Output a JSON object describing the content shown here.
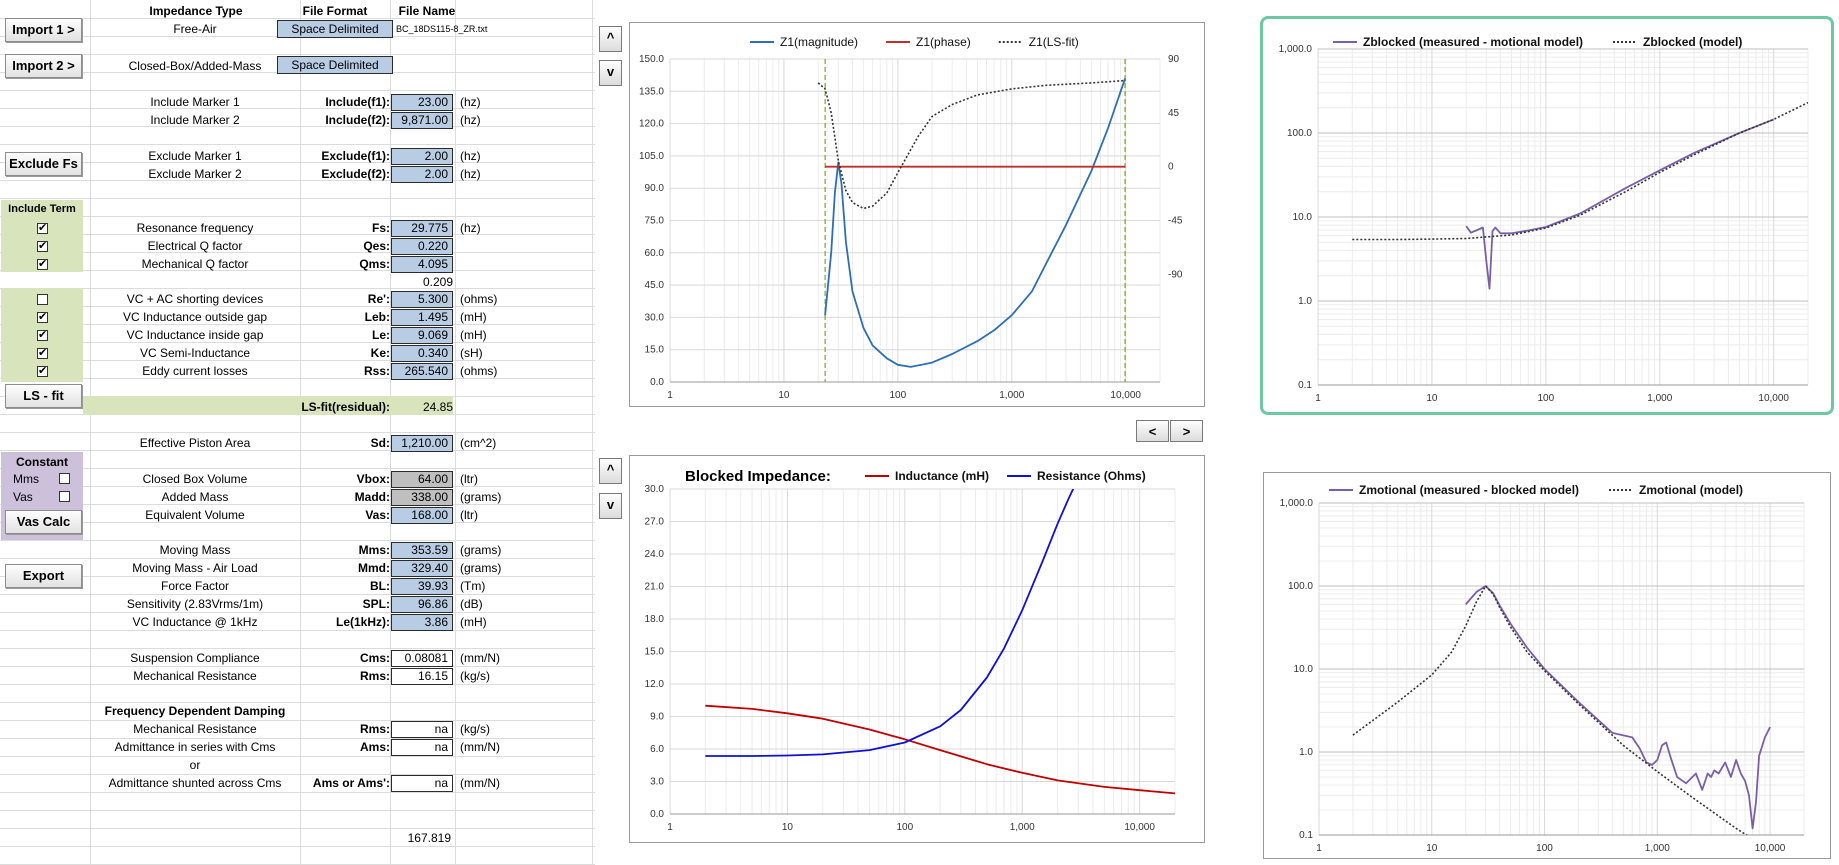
{
  "headers": {
    "impedance_type": "Impedance Type",
    "file_format": "File Format",
    "file_name": "File Name"
  },
  "buttons": {
    "import1": "Import 1 >",
    "import2": "Import 2 >",
    "exclude_fs": "Exclude Fs",
    "ls_fit": "LS - fit",
    "vas_calc": "Vas Calc",
    "export": "Export"
  },
  "import": {
    "row1": {
      "type": "Free-Air",
      "format": "Space Delimited",
      "file": "BC_18DS115-8_ZR.txt"
    },
    "row2": {
      "type": "Closed-Box/Added-Mass",
      "format": "Space Delimited"
    }
  },
  "markers": [
    {
      "label": "Include Marker 1",
      "sym": "Include(f1):",
      "value": "23.00",
      "unit": "(hz)"
    },
    {
      "label": "Include Marker 2",
      "sym": "Include(f2):",
      "value": "9,871.00",
      "unit": "(hz)"
    },
    {
      "label": "Exclude Marker 1",
      "sym": "Exclude(f1):",
      "value": "2.00",
      "unit": "(hz)"
    },
    {
      "label": "Exclude Marker 2",
      "sym": "Exclude(f2):",
      "value": "2.00",
      "unit": "(hz)"
    }
  ],
  "include_term_label": "Include Term",
  "terms": [
    {
      "checked": true,
      "label": "Resonance frequency",
      "sym": "Fs:",
      "value": "29.775",
      "unit": "(hz)"
    },
    {
      "checked": true,
      "label": "Electrical Q factor",
      "sym": "Qes:",
      "value": "0.220",
      "unit": ""
    },
    {
      "checked": true,
      "label": "Mechanical Q factor",
      "sym": "Qms:",
      "value": "4.095",
      "unit": ""
    }
  ],
  "qts_value": "0.209",
  "terms2": [
    {
      "checked": false,
      "label": "VC + AC shorting devices",
      "sym": "Re':",
      "value": "5.300",
      "unit": "(ohms)"
    },
    {
      "checked": true,
      "label": "VC Inductance outside gap",
      "sym": "Leb:",
      "value": "1.495",
      "unit": "(mH)"
    },
    {
      "checked": true,
      "label": "VC Inductance inside gap",
      "sym": "Le:",
      "value": "9.069",
      "unit": "(mH)"
    },
    {
      "checked": true,
      "label": "VC Semi-Inductance",
      "sym": "Ke:",
      "value": "0.340",
      "unit": "(sH)"
    },
    {
      "checked": true,
      "label": "Eddy current losses",
      "sym": "Rss:",
      "value": "265.540",
      "unit": "(ohms)"
    }
  ],
  "residual": {
    "sym": "LS-fit(residual):",
    "value": "24.85"
  },
  "piston": {
    "label": "Effective Piston Area",
    "sym": "Sd:",
    "value": "1,210.00",
    "unit": "(cm^2)"
  },
  "constant": {
    "label": "Constant",
    "mms": "Mms",
    "vas": "Vas"
  },
  "box": [
    {
      "label": "Closed Box Volume",
      "sym": "Vbox:",
      "value": "64.00",
      "unit": "(ltr)",
      "style": "gray"
    },
    {
      "label": "Added Mass",
      "sym": "Madd:",
      "value": "338.00",
      "unit": "(grams)",
      "style": "gray"
    },
    {
      "label": "Equivalent Volume",
      "sym": "Vas:",
      "value": "168.00",
      "unit": "(ltr)",
      "style": "blue"
    }
  ],
  "derived": [
    {
      "label": "Moving Mass",
      "sym": "Mms:",
      "value": "353.59",
      "unit": "(grams)"
    },
    {
      "label": "Moving Mass - Air Load",
      "sym": "Mmd:",
      "value": "329.40",
      "unit": "(grams)"
    },
    {
      "label": "Force Factor",
      "sym": "BL:",
      "value": "39.93",
      "unit": "(Tm)"
    },
    {
      "label": "Sensitivity (2.83Vrms/1m)",
      "sym": "SPL:",
      "value": "96.86",
      "unit": "(dB)"
    },
    {
      "label": "VC Inductance @ 1kHz",
      "sym": "Le(1kHz):",
      "value": "3.86",
      "unit": "(mH)"
    }
  ],
  "suspension": [
    {
      "label": "Suspension Compliance",
      "sym": "Cms:",
      "value": "0.08081",
      "unit": "(mm/N)"
    },
    {
      "label": "Mechanical Resistance",
      "sym": "Rms:",
      "value": "16.15",
      "unit": "(kg/s)"
    }
  ],
  "fdd": {
    "title": "Frequency Dependent Damping",
    "rows": [
      {
        "label": "Mechanical Resistance",
        "sym": "Rms:",
        "value": "na",
        "unit": "(kg/s)"
      },
      {
        "label": "Admittance in series with Cms",
        "sym": "Ams:",
        "value": "na",
        "unit": "(mm/N)"
      },
      {
        "label": "Admittance shunted across Cms",
        "sym": "Ams or Ams':",
        "value": "na",
        "unit": "(mm/N)"
      }
    ],
    "or": "or"
  },
  "bottom_value": "167.819",
  "nav": {
    "up": "^",
    "down": "v",
    "left": "<",
    "right": ">"
  },
  "chart_data": [
    {
      "type": "line",
      "xscale": "log",
      "xlim": [
        1,
        20000
      ],
      "ylim": [
        0,
        150
      ],
      "y2lim": [
        -180,
        90
      ],
      "x_ticks": [
        "1",
        "10",
        "100",
        "1,000",
        "10,000"
      ],
      "y_ticks": [
        "0.0",
        "15.0",
        "30.0",
        "45.0",
        "60.0",
        "75.0",
        "90.0",
        "105.0",
        "120.0",
        "135.0",
        "150.0"
      ],
      "y2_ticks": [
        "90",
        "45",
        "0",
        "-45",
        "-90"
      ],
      "legend_position": "top",
      "markers_x": [
        23,
        9871
      ],
      "series": [
        {
          "name": "Z1(magnitude)",
          "color": "#2e6eb5",
          "x": [
            23,
            26,
            28,
            30,
            32,
            35,
            40,
            50,
            60,
            80,
            100,
            130,
            200,
            300,
            500,
            700,
            1000,
            1500,
            2000,
            3000,
            5000,
            7000,
            9871
          ],
          "y": [
            31,
            60,
            88,
            102,
            92,
            65,
            42,
            25,
            17,
            11,
            8,
            7,
            9,
            13,
            19,
            24,
            31,
            42,
            55,
            73,
            98,
            118,
            141
          ]
        },
        {
          "name": "Z1(phase)",
          "color": "#c0302a",
          "x": [
            23,
            9871
          ],
          "y2": [
            0,
            0
          ]
        },
        {
          "name": "Z1(LS-fit)",
          "color": "#333333",
          "dash": true,
          "x": [
            20,
            23,
            26,
            30,
            35,
            40,
            50,
            60,
            80,
            100,
            150,
            200,
            300,
            500,
            1000,
            2000,
            5000,
            10000
          ],
          "y2": [
            70,
            65,
            45,
            5,
            -20,
            -30,
            -35,
            -33,
            -22,
            -5,
            25,
            42,
            52,
            60,
            65,
            68,
            70,
            72
          ]
        }
      ]
    },
    {
      "type": "line",
      "xscale": "log",
      "yscale": "log",
      "xlim": [
        1,
        20000
      ],
      "ylim": [
        0.1,
        1000
      ],
      "x_ticks": [
        "1",
        "10",
        "100",
        "1,000",
        "10,000"
      ],
      "y_ticks": [
        "0.1",
        "1.0",
        "10.0",
        "100.0",
        "1,000.0"
      ],
      "legend_position": "top",
      "series": [
        {
          "name": "Zblocked (measured - motional model)",
          "color": "#7a5fa8",
          "x": [
            20,
            22,
            25,
            28,
            30,
            32,
            34,
            36,
            40,
            50,
            70,
            100,
            200,
            500,
            1000,
            2000,
            5000,
            10000
          ],
          "y": [
            7.8,
            6.5,
            7,
            7.5,
            3,
            1.4,
            6.8,
            7.5,
            6.4,
            6.4,
            6.9,
            7.6,
            11,
            22,
            36,
            58,
            100,
            145
          ]
        },
        {
          "name": "Zblocked (model)",
          "color": "#333333",
          "dash": true,
          "x": [
            2,
            5,
            10,
            20,
            50,
            100,
            200,
            500,
            1000,
            2000,
            5000,
            10000,
            20000
          ],
          "y": [
            5.4,
            5.4,
            5.45,
            5.55,
            6.1,
            7.4,
            10.5,
            20,
            34,
            55,
            100,
            145,
            230
          ]
        }
      ]
    },
    {
      "type": "line",
      "xscale": "log",
      "xlim": [
        1,
        20000
      ],
      "ylim": [
        0,
        30
      ],
      "title": "Blocked Impedance:",
      "x_ticks": [
        "1",
        "10",
        "100",
        "1,000",
        "10,000"
      ],
      "y_ticks": [
        "0.0",
        "3.0",
        "6.0",
        "9.0",
        "12.0",
        "15.0",
        "18.0",
        "21.0",
        "24.0",
        "27.0",
        "30.0"
      ],
      "legend_position": "top",
      "series": [
        {
          "name": "Inductance (mH)",
          "color": "#c00000",
          "x": [
            2,
            5,
            10,
            20,
            50,
            100,
            200,
            500,
            1000,
            2000,
            5000,
            10000,
            20000
          ],
          "y": [
            10,
            9.7,
            9.3,
            8.8,
            7.8,
            6.9,
            5.9,
            4.6,
            3.8,
            3.1,
            2.5,
            2.2,
            1.9
          ]
        },
        {
          "name": "Resistance (Ohms)",
          "color": "#1010d0",
          "x": [
            2,
            5,
            10,
            20,
            50,
            100,
            200,
            300,
            500,
            700,
            1000,
            1500,
            2000,
            2500,
            3000,
            3500
          ],
          "y": [
            5.35,
            5.35,
            5.4,
            5.5,
            5.9,
            6.6,
            8.1,
            9.6,
            12.6,
            15.3,
            18.8,
            23.4,
            26.8,
            29.2,
            31,
            32.5
          ]
        }
      ]
    },
    {
      "type": "line",
      "xscale": "log",
      "yscale": "log",
      "xlim": [
        1,
        20000
      ],
      "ylim": [
        0.1,
        1000
      ],
      "x_ticks": [
        "1",
        "10",
        "100",
        "1,000",
        "10,000"
      ],
      "y_ticks": [
        "0.1",
        "1.0",
        "10.0",
        "100.0",
        "1,000.0"
      ],
      "legend_position": "top",
      "series": [
        {
          "name": "Zmotional (measured - blocked model)",
          "color": "#7a5fa8",
          "x": [
            20,
            25,
            30,
            35,
            40,
            50,
            70,
            100,
            200,
            400,
            600,
            700,
            800,
            900,
            1000,
            1100,
            1200,
            1300,
            1500,
            1800,
            2200,
            2500,
            2800,
            3000,
            3200,
            3500,
            4000,
            4500,
            5000,
            5500,
            6000,
            6500,
            7000,
            7500,
            8000,
            9000,
            10000
          ],
          "y": [
            60,
            85,
            100,
            82,
            58,
            35,
            18,
            10,
            4,
            1.7,
            1.5,
            1.1,
            0.75,
            0.7,
            0.8,
            1.2,
            1.3,
            0.9,
            0.5,
            0.42,
            0.55,
            0.35,
            0.55,
            0.5,
            0.6,
            0.55,
            0.75,
            0.5,
            0.8,
            0.55,
            0.45,
            0.3,
            0.12,
            0.25,
            0.9,
            1.5,
            2.0
          ]
        },
        {
          "name": "Zmotional (model)",
          "color": "#333333",
          "dash": true,
          "x": [
            2,
            5,
            10,
            15,
            20,
            25,
            30,
            35,
            40,
            50,
            70,
            100,
            200,
            500,
            1000,
            2000,
            5000,
            8000
          ],
          "y": [
            1.6,
            4,
            8.5,
            16,
            33,
            65,
            100,
            80,
            55,
            32,
            16,
            9.5,
            3.8,
            1.2,
            0.58,
            0.29,
            0.12,
            0.08
          ]
        }
      ]
    }
  ]
}
